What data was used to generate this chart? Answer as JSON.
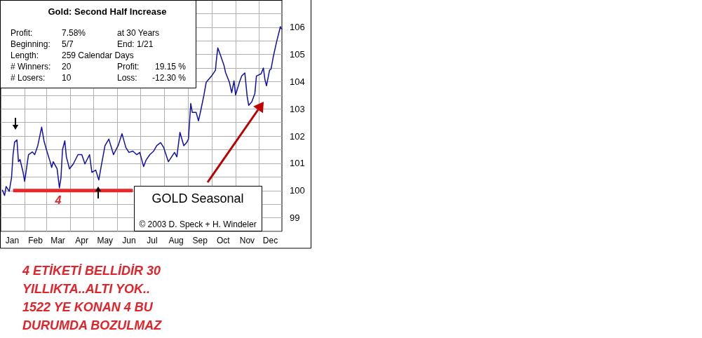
{
  "chart_data": {
    "type": "line",
    "title": "Gold: Second Half Increase",
    "x": [
      "--01-03",
      "--01-06",
      "--01-08",
      "--01-12",
      "--01-15",
      "--01-17",
      "--01-19",
      "--01-22",
      "--01-24",
      "--01-26",
      "--01-30",
      "--02-01",
      "--02-06",
      "--02-11",
      "--02-14",
      "--02-18",
      "--02-23",
      "--02-26",
      "--03-01",
      "--03-06",
      "--03-08",
      "--03-10",
      "--03-15",
      "--03-18",
      "--03-20",
      "--03-22",
      "--03-25",
      "--03-27",
      "--03-31",
      "--04-05",
      "--04-11",
      "--04-16",
      "--04-20",
      "--04-26",
      "--04-29",
      "--05-04",
      "--05-08",
      "--05-11",
      "--05-16",
      "--05-21",
      "--05-27",
      "--06-02",
      "--06-07",
      "--06-12",
      "--06-16",
      "--06-21",
      "--06-26",
      "--06-30",
      "--07-05",
      "--07-08",
      "--07-13",
      "--07-18",
      "--07-22",
      "--07-27",
      "--07-31",
      "--08-06",
      "--08-14",
      "--08-17",
      "--08-21",
      "--08-26",
      "--08-30",
      "--09-01",
      "--09-04",
      "--09-06",
      "--09-11",
      "--09-14",
      "--09-17",
      "--09-21",
      "--09-24",
      "--10-01",
      "--10-06",
      "--10-07",
      "--10-09",
      "--10-12",
      "--10-17",
      "--10-19",
      "--10-24",
      "--10-27",
      "--10-30",
      "--11-01",
      "--11-06",
      "--11-09",
      "--11-13",
      "--11-16",
      "--11-18",
      "--11-22",
      "--11-26",
      "--11-28",
      "--12-04",
      "--12-07",
      "--12-09",
      "--12-11",
      "--12-15",
      "--12-17",
      "--12-20",
      "--12-24",
      "--12-27",
      "--12-29",
      "--12-31"
    ],
    "series": [
      {
        "color": "#1010b0",
        "values": [
          100.03,
          99.82,
          100.15,
          99.97,
          100.47,
          101.32,
          101.78,
          101.86,
          101.06,
          101.14,
          100.67,
          100.34,
          101.32,
          101.42,
          101.32,
          101.65,
          102.33,
          101.83,
          101.52,
          101.06,
          100.85,
          101.06,
          100.8,
          100.1,
          100.47,
          101.5,
          101.83,
          101.24,
          100.8,
          100.98,
          101.32,
          101.32,
          100.98,
          101.32,
          100.67,
          100.75,
          100.39,
          100.88,
          101.65,
          101.89,
          101.32,
          101.65,
          102.09,
          101.58,
          101.4,
          101.45,
          101.32,
          101.4,
          100.88,
          101.11,
          101.32,
          101.45,
          101.65,
          101.76,
          101.58,
          101.06,
          101.4,
          101.24,
          102.14,
          101.65,
          101.78,
          101.89,
          103.2,
          102.87,
          102.87,
          102.56,
          102.95,
          103.5,
          103.98,
          104.21,
          104.42,
          104.75,
          105.24,
          105.01,
          104.6,
          104.34,
          103.98,
          103.6,
          104.03,
          103.51,
          103.98,
          104.21,
          104.32,
          103.46,
          103.13,
          103.26,
          103.57,
          104.21,
          104.29,
          104.5,
          104.08,
          103.85,
          104.42,
          104.47,
          104.94,
          105.45,
          105.79,
          106.02,
          105.92
        ]
      },
      {
        "color": "#e82828",
        "x": [
          "--01-17",
          "--06-21"
        ],
        "values": [
          100,
          100
        ]
      }
    ],
    "xlim": [
      "--01-01",
      "--12-31"
    ],
    "xticks": [
      {
        "value": "--02-01",
        "label": null
      },
      {
        "value": "--03-01",
        "label": null
      },
      {
        "value": "--04-01",
        "label": null
      },
      {
        "value": "--05-01",
        "label": null
      },
      {
        "value": "--06-01",
        "label": null
      },
      {
        "value": "--07-01",
        "label": null
      },
      {
        "value": "--08-01",
        "label": null
      },
      {
        "value": "--09-01",
        "label": null
      },
      {
        "value": "--10-01",
        "label": null
      },
      {
        "value": "--11-01",
        "label": null
      },
      {
        "value": "--12-01",
        "label": null
      },
      {
        "value": "--01-16",
        "label": "Jan"
      },
      {
        "value": "--02-15",
        "label": "Feb"
      },
      {
        "value": "--03-16",
        "label": "Mar"
      },
      {
        "value": "--04-16",
        "label": "Apr"
      },
      {
        "value": "--05-16",
        "label": "May"
      },
      {
        "value": "--06-16",
        "label": "Jun"
      },
      {
        "value": "--07-16",
        "label": "Jul"
      },
      {
        "value": "--08-16",
        "label": "Aug"
      },
      {
        "value": "--09-16",
        "label": "Sep"
      },
      {
        "value": "--10-16",
        "label": "Oct"
      },
      {
        "value": "--11-16",
        "label": "Nov"
      },
      {
        "value": "--12-16",
        "label": "Dec"
      }
    ],
    "ylim": [
      98.5,
      107
    ],
    "yticks": [
      {
        "value": 98.5,
        "label": null
      },
      99,
      {
        "value": 99.5,
        "label": null
      },
      100,
      {
        "value": 100.5,
        "label": null
      },
      101,
      {
        "value": 101.5,
        "label": null
      },
      102,
      {
        "value": 102.5,
        "label": null
      },
      103,
      {
        "value": 103.5,
        "label": null
      },
      104,
      {
        "value": 104.5,
        "label": null
      },
      105,
      {
        "value": 105.5,
        "label": null
      },
      106,
      {
        "value": 106.5,
        "label": null
      }
    ],
    "grid": true,
    "annotations": [
      "Profit:",
      "7.58%",
      "at 30 Years",
      "Beginning:",
      "5/7",
      "End: 1/21",
      "Length:",
      "259 Calendar Days",
      "# Winners:",
      "20",
      "Profit:",
      "19.15 %",
      "# Losers:",
      "10",
      "Loss:",
      "-12.30 %",
      "GOLD Seasonal",
      "© 2003 D. Speck + H. Windeler",
      "4",
      "4 ETİKETİ BELLİDİR 30",
      "YILLIKTA..ALTI YOK..",
      "1522 YE KONAN 4 BU",
      "DURUMDA BOZULMAZ"
    ]
  }
}
